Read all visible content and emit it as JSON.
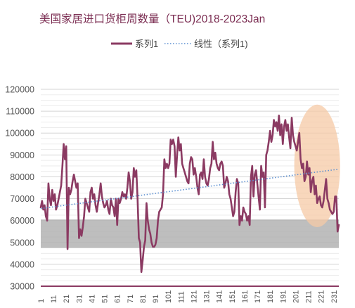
{
  "chart_data": {
    "type": "line",
    "title": "美国家居进口货柜周数量（TEU)2018-2023Jan",
    "legend": {
      "position": "top-center",
      "entries": [
        {
          "label": "系列1",
          "style": "solid",
          "color": "#8b3a62"
        },
        {
          "label": "线性（系列1)",
          "style": "dotted",
          "color": "#5b8fd1"
        }
      ]
    },
    "y_axis": {
      "ylim": [
        30000,
        120000
      ],
      "ticks": [
        "30000",
        "40000",
        "50000",
        "60000",
        "70000",
        "80000",
        "90000",
        "100000",
        "110000",
        "120000"
      ]
    },
    "x_axis": {
      "range": [
        1,
        235
      ],
      "ticks": [
        "1",
        "11",
        "21",
        "31",
        "41",
        "51",
        "61",
        "71",
        "81",
        "91",
        "101",
        "111",
        "121",
        "131",
        "141",
        "151",
        "161",
        "171",
        "181",
        "191",
        "201",
        "211",
        "221",
        "231"
      ]
    },
    "grid": true,
    "shaded_band": {
      "y_range": [
        47500,
        60500
      ],
      "color": "#b3b3b3"
    },
    "highlight_ellipse": {
      "x_center": 218,
      "y_center": 85000,
      "x_radius": 18,
      "y_radius": 28000,
      "color": "#f6c9a6"
    },
    "trendline": {
      "x": [
        1,
        235
      ],
      "y": [
        65500,
        83500
      ]
    },
    "series": [
      {
        "name": "系列1",
        "color": "#8b3a62",
        "x": [
          1,
          2,
          3,
          4,
          5,
          6,
          7,
          8,
          9,
          10,
          11,
          12,
          13,
          14,
          15,
          16,
          17,
          18,
          19,
          20,
          21,
          22,
          23,
          24,
          25,
          26,
          27,
          28,
          29,
          30,
          31,
          32,
          33,
          34,
          35,
          36,
          37,
          38,
          39,
          40,
          41,
          42,
          43,
          44,
          45,
          46,
          47,
          48,
          49,
          50,
          51,
          52,
          53,
          54,
          55,
          56,
          57,
          58,
          59,
          60,
          61,
          62,
          63,
          64,
          65,
          66,
          67,
          68,
          69,
          70,
          71,
          72,
          73,
          74,
          75,
          76,
          77,
          78,
          79,
          80,
          81,
          82,
          83,
          84,
          85,
          86,
          87,
          88,
          89,
          90,
          91,
          92,
          93,
          94,
          95,
          96,
          97,
          98,
          99,
          100,
          101,
          102,
          103,
          104,
          105,
          106,
          107,
          108,
          109,
          110,
          111,
          112,
          113,
          114,
          115,
          116,
          117,
          118,
          119,
          120,
          121,
          122,
          123,
          124,
          125,
          126,
          127,
          128,
          129,
          130,
          131,
          132,
          133,
          134,
          135,
          136,
          137,
          138,
          139,
          140,
          141,
          142,
          143,
          144,
          145,
          146,
          147,
          148,
          149,
          150,
          151,
          152,
          153,
          154,
          155,
          156,
          157,
          158,
          159,
          160,
          161,
          162,
          163,
          164,
          165,
          166,
          167,
          168,
          169,
          170,
          171,
          172,
          173,
          174,
          175,
          176,
          177,
          178,
          179,
          180,
          181,
          182,
          183,
          184,
          185,
          186,
          187,
          188,
          189,
          190,
          191,
          192,
          193,
          194,
          195,
          196,
          197,
          198,
          199,
          200,
          201,
          202,
          203,
          204,
          205,
          206,
          207,
          208,
          209,
          210,
          211,
          212,
          213,
          214,
          215,
          216,
          217,
          218,
          219,
          220,
          221,
          222,
          223,
          224,
          225,
          226,
          227,
          228,
          229,
          230,
          231,
          232,
          233,
          234,
          235
        ],
        "y": [
          66000,
          69000,
          65000,
          67000,
          62000,
          60000,
          77000,
          70000,
          67000,
          74000,
          69000,
          72000,
          65000,
          67000,
          70000,
          73000,
          76000,
          85000,
          95000,
          88000,
          94000,
          47000,
          75000,
          72000,
          74000,
          78000,
          81000,
          78000,
          75000,
          77000,
          52000,
          56000,
          53000,
          57000,
          62000,
          70000,
          68000,
          66000,
          64000,
          73000,
          75000,
          70000,
          72000,
          67000,
          64000,
          68000,
          72000,
          77000,
          71000,
          68000,
          66000,
          67000,
          69000,
          65000,
          63000,
          70000,
          67000,
          66000,
          62000,
          70000,
          58000,
          70000,
          68000,
          70000,
          73000,
          71000,
          72000,
          70000,
          75000,
          82000,
          78000,
          70000,
          73000,
          84000,
          80000,
          83000,
          70000,
          52000,
          50000,
          36500,
          42000,
          48000,
          51000,
          68000,
          60000,
          56000,
          54000,
          50000,
          48000,
          48000,
          49000,
          52000,
          60000,
          64000,
          65000,
          66000,
          72000,
          88000,
          84000,
          86000,
          84000,
          86000,
          97000,
          95000,
          97000,
          94000,
          80000,
          90000,
          98000,
          92000,
          95000,
          86000,
          84000,
          82000,
          80000,
          78000,
          77000,
          86000,
          89000,
          88000,
          81000,
          84000,
          80000,
          75000,
          72000,
          81000,
          82000,
          79000,
          88000,
          80000,
          77000,
          76000,
          79000,
          84000,
          86000,
          96000,
          88000,
          91000,
          86000,
          84000,
          83000,
          86000,
          87000,
          85000,
          75000,
          77000,
          80000,
          78000,
          72000,
          70000,
          66000,
          62000,
          64000,
          73000,
          79000,
          77000,
          58000,
          62000,
          60000,
          66000,
          64000,
          63000,
          60000,
          62000,
          58000,
          80000,
          85000,
          71000,
          81000,
          83000,
          77000,
          71000,
          65000,
          85000,
          80000,
          82000,
          66000,
          90000,
          92000,
          96000,
          101000,
          96000,
          99000,
          106000,
          103000,
          105000,
          101000,
          108000,
          99000,
          104000,
          95000,
          103000,
          106000,
          101000,
          104000,
          98000,
          93000,
          107000,
          99000,
          96000,
          94000,
          92000,
          96000,
          100000,
          88000,
          84000,
          86000,
          78000,
          80000,
          87000,
          81000,
          84000,
          73000,
          78000,
          80000,
          72000,
          76000,
          68000,
          70000,
          71000,
          67000,
          66000,
          69000,
          74000,
          79000,
          70000,
          68000,
          65000,
          64000,
          63000,
          64000,
          71000,
          71000,
          55000,
          58000
        ]
      }
    ]
  }
}
